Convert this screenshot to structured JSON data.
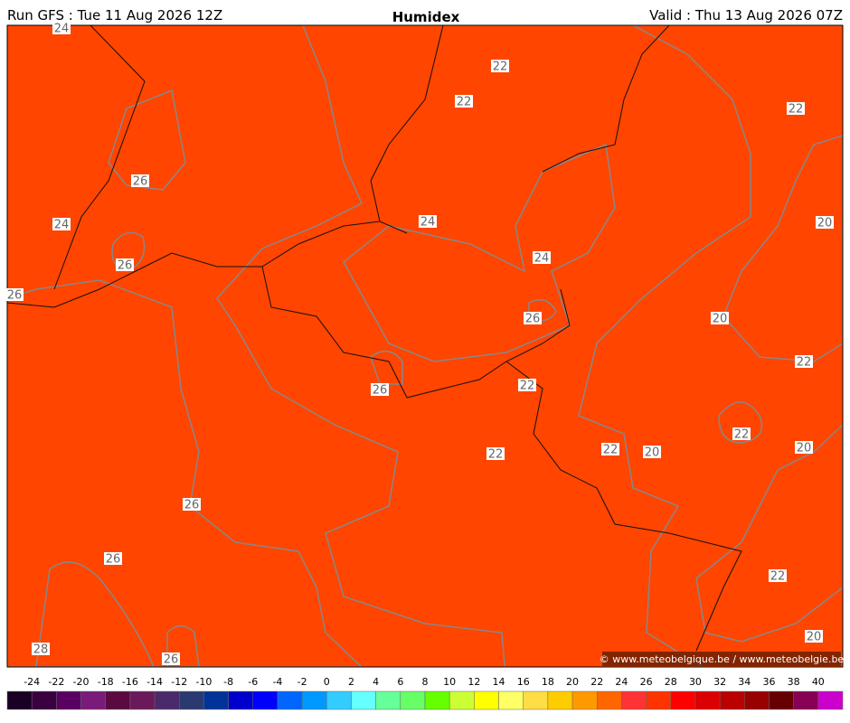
{
  "header": {
    "left": "Run GFS : Tue 11 Aug 2026 12Z",
    "title": "Humidex",
    "right": "Valid : Thu 13 Aug 2026 07Z"
  },
  "contour_labels": [
    24,
    22,
    22,
    22,
    26,
    24,
    24,
    20,
    26,
    24,
    26,
    26,
    20,
    22,
    26,
    22,
    22,
    22,
    20,
    20,
    22,
    26,
    26,
    22,
    20,
    28,
    26
  ],
  "copyright": "© www.meteobelgique.be / www.meteobelgie.be",
  "colorbar": {
    "labels": [
      -24,
      -22,
      -20,
      -18,
      -16,
      -14,
      -12,
      -10,
      -8,
      -6,
      -4,
      -2,
      0,
      2,
      4,
      6,
      8,
      10,
      12,
      14,
      16,
      18,
      20,
      22,
      24,
      26,
      28,
      30,
      32,
      34,
      36,
      38,
      40
    ],
    "colors": [
      "#1a0024",
      "#3a0040",
      "#5a0060",
      "#7a1a7a",
      "#5a0a40",
      "#6a1a5a",
      "#4a2a6a",
      "#2a3a70",
      "#003399",
      "#0000cc",
      "#0000ff",
      "#0066ff",
      "#0099ff",
      "#33ccff",
      "#66ffff",
      "#66ff99",
      "#66ff66",
      "#66ff00",
      "#ccff33",
      "#ffff00",
      "#ffff66",
      "#ffdd44",
      "#ffcc00",
      "#ff9900",
      "#ff6600",
      "#ff3333",
      "#ff3300",
      "#ff0000",
      "#dd0000",
      "#bb0000",
      "#990000",
      "#660000",
      "#880055",
      "#cc00cc"
    ]
  }
}
